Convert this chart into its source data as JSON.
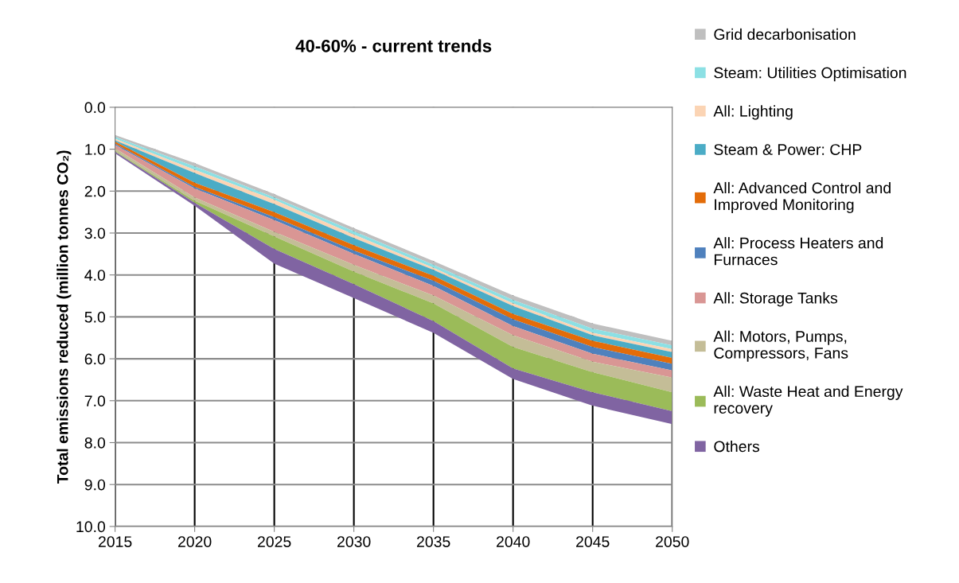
{
  "chart_data": {
    "type": "area",
    "stacked": true,
    "title": "40-60% - current trends",
    "ylabel": "Total emissions reduced (million tonnes CO₂)",
    "x": [
      2015,
      2020,
      2025,
      2030,
      2035,
      2040,
      2045,
      2050
    ],
    "xlim": [
      2015,
      2050
    ],
    "xticks": [
      2015,
      2020,
      2025,
      2030,
      2035,
      2040,
      2045,
      2050
    ],
    "ylim": [
      10,
      0
    ],
    "yticks": [
      {
        "value": 0,
        "label": "0.0"
      },
      {
        "value": 1,
        "label": "1.0"
      },
      {
        "value": 2,
        "label": "2.0"
      },
      {
        "value": 3,
        "label": "3.0"
      },
      {
        "value": 4,
        "label": "4.0"
      },
      {
        "value": 5,
        "label": "5.0"
      },
      {
        "value": 6,
        "label": "6.0"
      },
      {
        "value": 7,
        "label": "7.0"
      },
      {
        "value": 8,
        "label": "8.0"
      },
      {
        "value": 9,
        "label": "9.0"
      },
      {
        "value": 10,
        "label": "10.0"
      }
    ],
    "grid": true,
    "legend": "right",
    "series": [
      {
        "color": "#ffffff",
        "values": [
          0.66,
          1.33,
          2.07,
          2.88,
          3.67,
          4.49,
          5.16,
          5.57
        ]
      },
      {
        "name": "Grid decarbonisation",
        "color": "#bfbfbf",
        "values": [
          0.05,
          0.08,
          0.08,
          0.08,
          0.09,
          0.11,
          0.12,
          0.11
        ]
      },
      {
        "name": "Steam: Utilities Optimisation",
        "color": "#8ce0e4",
        "values": [
          0.04,
          0.08,
          0.06,
          0.08,
          0.07,
          0.08,
          0.1,
          0.09
        ]
      },
      {
        "name": "All: Lighting",
        "color": "#fbd4b4",
        "values": [
          0.04,
          0.08,
          0.1,
          0.08,
          0.05,
          0.06,
          0.06,
          0.07
        ]
      },
      {
        "name": "Steam & Power: CHP",
        "color": "#4bacc6",
        "values": [
          0.03,
          0.23,
          0.19,
          0.17,
          0.14,
          0.19,
          0.13,
          0.14
        ]
      },
      {
        "name": "All: Advanced Control and\nImproved Monitoring",
        "color": "#e36c09",
        "values": [
          0.05,
          0.1,
          0.12,
          0.13,
          0.12,
          0.13,
          0.15,
          0.14
        ]
      },
      {
        "name": "All: Process Heaters and\nFurnaces",
        "color": "#4f81bd",
        "values": [
          0.03,
          0.04,
          0.07,
          0.08,
          0.12,
          0.16,
          0.16,
          0.16
        ]
      },
      {
        "name": "All: Storage Tanks",
        "color": "#d99694",
        "values": [
          0.08,
          0.21,
          0.28,
          0.26,
          0.23,
          0.22,
          0.19,
          0.17
        ]
      },
      {
        "name": "All: Motors, Pumps,\nCompressors, Fans",
        "color": "#c4bd97",
        "values": [
          0.06,
          0.08,
          0.11,
          0.16,
          0.19,
          0.28,
          0.25,
          0.35
        ]
      },
      {
        "name": "All: Waste Heat and Energy\nrecovery",
        "color": "#9bbb59",
        "values": [
          0.02,
          0.05,
          0.3,
          0.3,
          0.42,
          0.51,
          0.48,
          0.45
        ]
      },
      {
        "name": "Others",
        "color": "#8064a2",
        "values": [
          0.04,
          0.07,
          0.35,
          0.33,
          0.28,
          0.25,
          0.32,
          0.31
        ]
      }
    ]
  }
}
